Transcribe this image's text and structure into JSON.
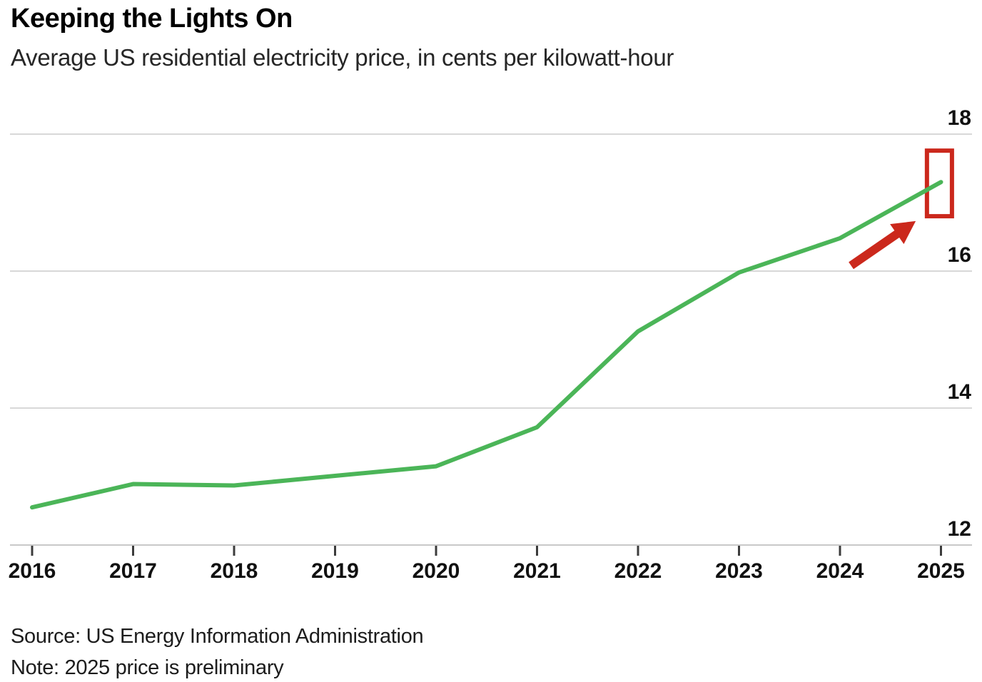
{
  "header": {
    "title": "Keeping the Lights On",
    "subtitle": "Average US residential electricity price, in cents per kilowatt-hour"
  },
  "footer": {
    "source": "Source: US Energy Information Administration",
    "note": "Note: 2025 price is preliminary"
  },
  "chart_data": {
    "type": "line",
    "title": "Keeping the Lights On",
    "subtitle": "Average US residential electricity price, in cents per kilowatt-hour",
    "categories": [
      "2016",
      "2017",
      "2018",
      "2019",
      "2020",
      "2021",
      "2022",
      "2023",
      "2024",
      "2025"
    ],
    "series": [
      {
        "name": "Average US residential electricity price (cents per kilowatt-hour)",
        "values": [
          12.55,
          12.89,
          12.87,
          13.01,
          13.15,
          13.72,
          15.12,
          15.98,
          16.48,
          17.3
        ]
      }
    ],
    "xlabel": "",
    "ylabel": "cents per kilowatt-hour",
    "ylim": [
      12,
      18.6
    ],
    "yticks": [
      12,
      14,
      16,
      18
    ],
    "grid": "horizontal",
    "legend": "none",
    "y_axis_label_side": "right",
    "colors": {
      "line": "#4bb558",
      "annotation_red": "#cb281c",
      "gridline": "#d8d8d8",
      "axis_line": "#c9c9c9",
      "tick": "#3c3c3c",
      "axis_text": "#111111"
    },
    "annotations": {
      "highlight_box": {
        "description": "red rectangle highlighting the preliminary 2025 data point",
        "x0": 2024.84,
        "x1": 2025.13,
        "y_top": 17.79,
        "y_bottom": 16.77
      },
      "arrow": {
        "description": "red arrow pointing up-right at the 2025 highlight box",
        "tail": {
          "x": 2024.11,
          "y": 16.08
        },
        "head": {
          "x": 2024.75,
          "y": 16.73
        }
      }
    }
  }
}
